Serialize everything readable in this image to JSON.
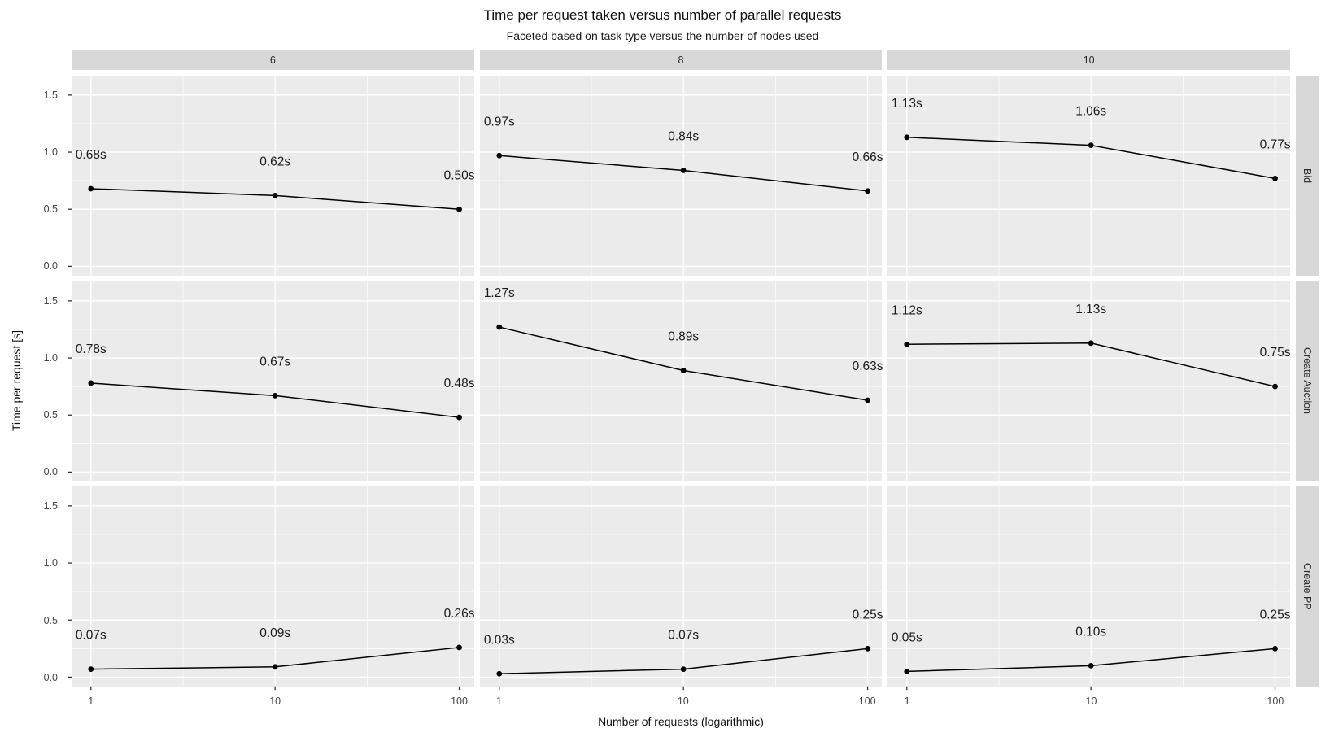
{
  "chart_data": {
    "type": "line",
    "title": "Time per request taken versus number of parallel requests",
    "subtitle": "Faceted based on task type versus the number of nodes used",
    "xlabel": "Number of requests (logarithmic)",
    "ylabel": "Time per request [s]",
    "x_scale": "log10",
    "x": [
      1,
      10,
      100
    ],
    "x_tick_labels": [
      "1",
      "10",
      "100"
    ],
    "y_ticks": [
      0.0,
      0.5,
      1.0,
      1.5
    ],
    "y_tick_labels": [
      "0.0",
      "0.5",
      "1.0",
      "1.5"
    ],
    "y_minor_ticks": [
      0.25,
      0.75,
      1.25
    ],
    "x_minor_log10": [
      0.5,
      1.5
    ],
    "xlim_log10": [
      -0.105,
      2.08
    ],
    "ylim": [
      -0.08,
      1.67
    ],
    "grid": "white major and minor gridlines on grey panel",
    "legend": "none",
    "facet": {
      "columns": [
        "6",
        "8",
        "10"
      ],
      "rows": [
        "Bid",
        "Create Auction",
        "Create PP"
      ]
    },
    "series": [
      {
        "facet_row": "Bid",
        "facet_col": "6",
        "values": [
          0.68,
          0.62,
          0.5
        ],
        "point_labels": [
          "0.68s",
          "0.62s",
          "0.50s"
        ]
      },
      {
        "facet_row": "Bid",
        "facet_col": "8",
        "values": [
          0.97,
          0.84,
          0.66
        ],
        "point_labels": [
          "0.97s",
          "0.84s",
          "0.66s"
        ]
      },
      {
        "facet_row": "Bid",
        "facet_col": "10",
        "values": [
          1.13,
          1.06,
          0.77
        ],
        "point_labels": [
          "1.13s",
          "1.06s",
          "0.77s"
        ]
      },
      {
        "facet_row": "Create Auction",
        "facet_col": "6",
        "values": [
          0.78,
          0.67,
          0.48
        ],
        "point_labels": [
          "0.78s",
          "0.67s",
          "0.48s"
        ]
      },
      {
        "facet_row": "Create Auction",
        "facet_col": "8",
        "values": [
          1.27,
          0.89,
          0.63
        ],
        "point_labels": [
          "1.27s",
          "0.89s",
          "0.63s"
        ]
      },
      {
        "facet_row": "Create Auction",
        "facet_col": "10",
        "values": [
          1.12,
          1.13,
          0.75
        ],
        "point_labels": [
          "1.12s",
          "1.13s",
          "0.75s"
        ]
      },
      {
        "facet_row": "Create PP",
        "facet_col": "6",
        "values": [
          0.07,
          0.09,
          0.26
        ],
        "point_labels": [
          "0.07s",
          "0.09s",
          "0.26s"
        ]
      },
      {
        "facet_row": "Create PP",
        "facet_col": "8",
        "values": [
          0.03,
          0.07,
          0.25
        ],
        "point_labels": [
          "0.03s",
          "0.07s",
          "0.25s"
        ]
      },
      {
        "facet_row": "Create PP",
        "facet_col": "10",
        "values": [
          0.05,
          0.1,
          0.25
        ],
        "point_labels": [
          "0.05s",
          "0.10s",
          "0.25s"
        ]
      }
    ],
    "colors": {
      "panel_bg": "#ebebeb",
      "strip_bg": "#d8d8d8",
      "grid_major": "#ffffff",
      "grid_minor": "#ffffff",
      "line": "#000000",
      "point": "#000000",
      "label_text": "#1a1a1a",
      "tick_text": "#454545",
      "tick_mark": "#333333"
    }
  }
}
